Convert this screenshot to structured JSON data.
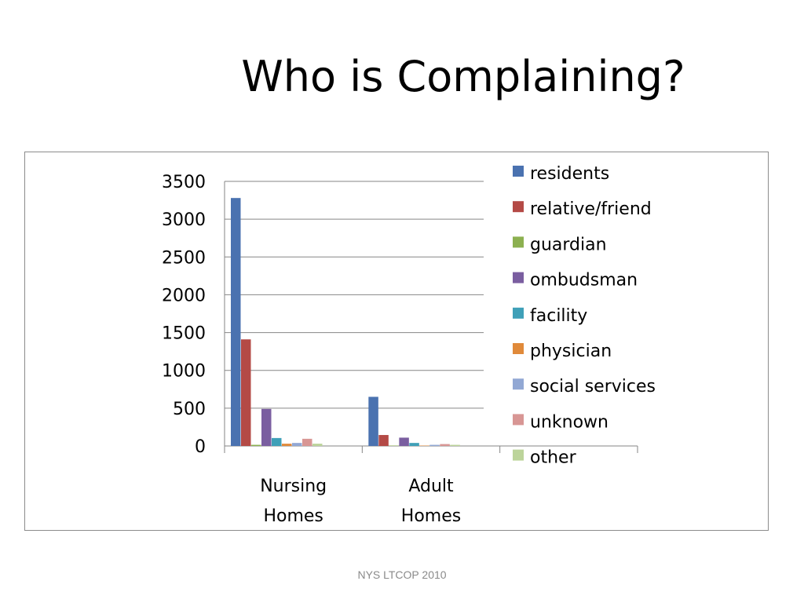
{
  "slide": {
    "title": "Who is Complaining?",
    "footer": "NYS LTCOP 2010"
  },
  "chart_data": {
    "type": "bar",
    "categories": [
      [
        "Nursing",
        "Homes"
      ],
      [
        "Adult",
        "Homes"
      ],
      [
        "",
        ""
      ]
    ],
    "ylim": [
      0,
      3500
    ],
    "yticks": [
      0,
      500,
      1000,
      1500,
      2000,
      2500,
      3000,
      3500
    ],
    "grid": true,
    "legend_position": "right",
    "series": [
      {
        "name": "residents",
        "color": "#4a72b0",
        "values": [
          3280,
          650,
          0
        ]
      },
      {
        "name": "relative/friend",
        "color": "#b44a46",
        "values": [
          1410,
          145,
          0
        ]
      },
      {
        "name": "guardian",
        "color": "#8cb050",
        "values": [
          15,
          5,
          0
        ]
      },
      {
        "name": "ombudsman",
        "color": "#7a5ea0",
        "values": [
          490,
          110,
          0
        ]
      },
      {
        "name": "facility",
        "color": "#3fa0b8",
        "values": [
          105,
          40,
          0
        ]
      },
      {
        "name": "physician",
        "color": "#e08a3a",
        "values": [
          30,
          5,
          0
        ]
      },
      {
        "name": "social services",
        "color": "#92a8d4",
        "values": [
          40,
          15,
          0
        ]
      },
      {
        "name": "unknown",
        "color": "#d89694",
        "values": [
          95,
          25,
          0
        ]
      },
      {
        "name": "other",
        "color": "#bcd49a",
        "values": [
          30,
          15,
          0
        ]
      }
    ]
  }
}
